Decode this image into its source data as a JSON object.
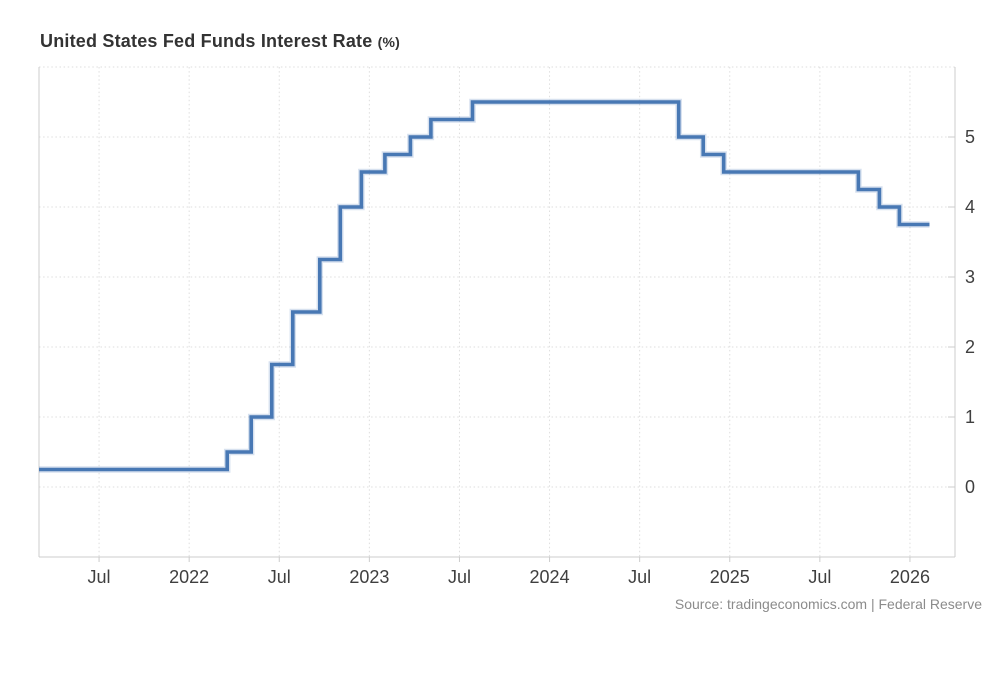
{
  "header": {
    "title": "United States Fed Funds Interest Rate",
    "unit_suffix": "(%)"
  },
  "footer": {
    "source_text": "Source: tradingeconomics.com | Federal Reserve"
  },
  "chart_data": {
    "type": "line",
    "line_style": "step-after",
    "title": "United States Fed Funds Interest Rate (%)",
    "xlabel": "",
    "ylabel": "",
    "y_axis_side": "right",
    "grid": "dotted",
    "legend": "none",
    "x_domain": [
      "2021-03",
      "2026-04"
    ],
    "y_domain": [
      -1,
      6
    ],
    "y_ticks": [
      0,
      1,
      2,
      3,
      4,
      5
    ],
    "x_ticks": [
      {
        "date": "2021-07",
        "label": "Jul"
      },
      {
        "date": "2022-01",
        "label": "2022"
      },
      {
        "date": "2022-07",
        "label": "Jul"
      },
      {
        "date": "2023-01",
        "label": "2023"
      },
      {
        "date": "2023-07",
        "label": "Jul"
      },
      {
        "date": "2024-01",
        "label": "2024"
      },
      {
        "date": "2024-07",
        "label": "Jul"
      },
      {
        "date": "2025-01",
        "label": "2025"
      },
      {
        "date": "2025-07",
        "label": "Jul"
      },
      {
        "date": "2026-01",
        "label": "2026"
      }
    ],
    "series": [
      {
        "name": "Fed Funds Interest Rate",
        "color": "#4878b4",
        "points": [
          [
            "2021-03-01",
            0.25
          ],
          [
            "2022-03-17",
            0.5
          ],
          [
            "2022-05-05",
            1.0
          ],
          [
            "2022-06-16",
            1.75
          ],
          [
            "2022-07-28",
            2.5
          ],
          [
            "2022-09-22",
            3.25
          ],
          [
            "2022-11-03",
            4.0
          ],
          [
            "2022-12-15",
            4.5
          ],
          [
            "2023-02-02",
            4.75
          ],
          [
            "2023-03-23",
            5.0
          ],
          [
            "2023-05-04",
            5.25
          ],
          [
            "2023-07-27",
            5.5
          ],
          [
            "2024-09-19",
            5.0
          ],
          [
            "2024-11-08",
            4.75
          ],
          [
            "2024-12-19",
            4.5
          ],
          [
            "2025-09-18",
            4.25
          ],
          [
            "2025-10-30",
            4.0
          ],
          [
            "2025-12-10",
            3.75
          ],
          [
            "2026-02-10",
            3.75
          ]
        ]
      }
    ],
    "colors": {
      "line": "#4878b4",
      "grid": "#dedede",
      "axis_border": "#cccccc",
      "tick_label": "#3f3f3f",
      "background": "#ffffff"
    }
  }
}
